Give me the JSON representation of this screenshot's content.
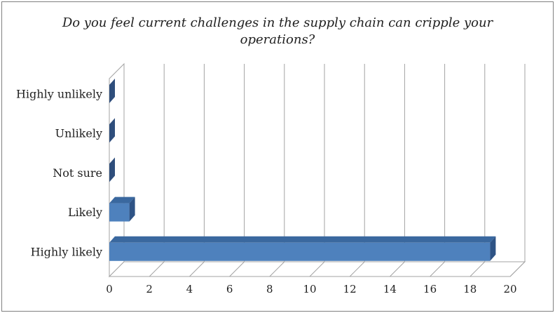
{
  "chart_data": {
    "type": "bar",
    "orientation": "horizontal",
    "style": "3d-clustered-bar",
    "title": "Do you feel current challenges in the supply chain can cripple your operations?",
    "title_lines": [
      "Do you feel current challenges in the supply chain can cripple your",
      "operations?"
    ],
    "categories": [
      "Highly unlikely",
      "Unlikely",
      "Not sure",
      "Likely",
      "Highly likely"
    ],
    "values": [
      0,
      0,
      0,
      1,
      19
    ],
    "xlabel": "",
    "ylabel": "",
    "xlim": [
      0,
      20
    ],
    "xticks": [
      0,
      2,
      4,
      6,
      8,
      10,
      12,
      14,
      16,
      18,
      20
    ],
    "grid": "vertical gridlines every 2 units on 3-D back wall",
    "legend": "none",
    "colors": {
      "bar_front": "#4E81BD",
      "bar_top": "#3A689F",
      "bar_side": "#2E5385",
      "zero_bar_sliver": "#2F4E7C",
      "gridline": "#A3A3A3",
      "frame_border": "#808080",
      "text": "#1F1F1F",
      "background": "#FFFFFF"
    }
  }
}
